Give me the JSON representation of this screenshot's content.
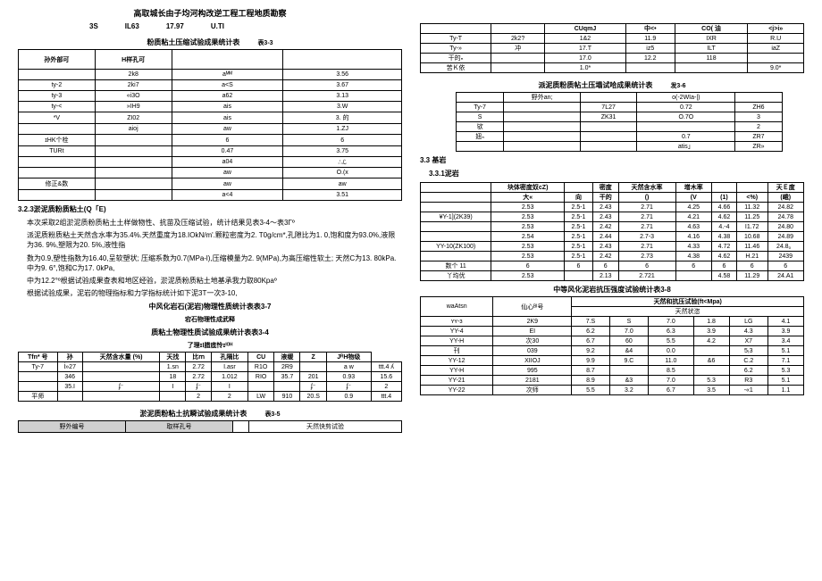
{
  "doc_title": "高取城长由子均河构改逆工程工程地质勘察",
  "top_row": {
    "a": "3S",
    "b": "IL63",
    "c": "17.97",
    "d": "U.TI"
  },
  "table33": {
    "title": "粉质粘土压缩试验成果统计表",
    "num": "表3-3",
    "cols": [
      "孙外部可",
      "H样孔可",
      "",
      ""
    ],
    "rows": [
      [
        "",
        "2k8",
        "aᴹᴹ",
        "3.56"
      ],
      [
        "ty-2",
        "2ki7",
        "a<S",
        "3.67"
      ],
      [
        "ty-3",
        "«i3O",
        "a62",
        "3.13"
      ],
      [
        "ty-<",
        "»IH9",
        "ais",
        "3.W"
      ],
      [
        "*V",
        "ZI02",
        "ais",
        "3. 的"
      ],
      [
        "",
        "aioj",
        "aw",
        "1.ZJ"
      ],
      [
        "ɪHK个栓",
        "",
        "6",
        "6"
      ],
      [
        "TURt",
        "",
        "0.47",
        "3.75"
      ],
      [
        "",
        "",
        "a04",
        "∴ℒ"
      ],
      [
        "",
        "",
        "aw",
        "O.(x"
      ],
      [
        "修正&数",
        "",
        "aw",
        "aw"
      ],
      [
        "",
        "",
        "a<4",
        "3.51"
      ]
    ]
  },
  "section323": {
    "head": "3.2.3淤泥质粉质粘土(Q「E)",
    "p1": "本次采取2组淤泥质粉质粘土土样做物性、抗苗及压缩试验，统计结果见表3-4～表3Γº",
    "p2": "派泥质粉质粘土天然含水率为35.4%.天然重度为18.IOkN/m'.颗粒密度为2. T0g/cm*,孔隙比为1. 0,饱和度为93.0%,液限为36. 9%,塑限为20. 5%,液性指",
    "p3": "数为0.9,塑性指数为16.40,呈软塑状; 压缩系数为0.7(MPa-l),压缩模量为2. 9(MPa),为高压缩性软土; 天然C为13. 80kPa.中为9. 6°,饱和C为17. 0kPa,",
    "p4": "中为12.2°º根据试验成果查表和地区经验，淤泥质粉质粘土地基承我力取80Kpaº",
    "p5": "根据试验成果，泥岩的物理指标和力学指标统计如下泥3T一次3-10,"
  },
  "table37_title": "中风化岩石(泥岩)物理性质统计表表3-7",
  "table37_sub": "宕石物理性成武释",
  "table34": {
    "title": "质粘土物理性质试验成果统计表表3-4",
    "sub": "了理ɪⅠ腊底怜ɪᴵᴼᴴ",
    "cols": [
      "Tfn* 号",
      "孙",
      "天然含水量 (%)",
      "天找",
      "比ⅿ",
      "孔隔比",
      "CU",
      "液缓",
      "Z",
      "JᴿH物级"
    ],
    "rows": [
      [
        "Ty-7",
        "İ»27",
        "",
        "1.sn",
        "2.72",
        "I.asr",
        "R1O",
        "2R9",
        "",
        "a w",
        "ttt.4 ʎ"
      ],
      [
        "",
        "346",
        "",
        "18",
        "2.72",
        "1.012",
        "RIO",
        "35.7",
        "201",
        "0.93",
        "15.6"
      ],
      [
        "",
        "35.I",
        "ʄ⁻",
        "I",
        "ʄ⁻",
        " I",
        "",
        "",
        "ʄ⁻",
        "ʄ⁻",
        " 2"
      ],
      [
        "平师",
        "",
        "",
        "",
        "2",
        " 2",
        "LW",
        "910",
        "20.S",
        "0.9",
        "ttt.4"
      ]
    ]
  },
  "table35": {
    "title": "淤泥质粉粘土抗瞬试验成果统计表",
    "num": "表3-5",
    "footer": [
      "野外编号",
      "取样孔号",
      "",
      "天然快剪试验"
    ]
  },
  "table_r1": {
    "thr": [
      "",
      "",
      "CUqmJ",
      "中<•",
      "CO( 油 ",
      "<j>i»"
    ],
    "rows": [
      [
        "Ty-T",
        "2k2?",
        "1&2",
        "11.9",
        "IXR",
        "R.U"
      ],
      [
        "Ty-»",
        "冲",
        "17.T",
        "iz5",
        "ILT",
        "iaZ"
      ],
      [
        "干的ₙ",
        " ",
        "17.0",
        "12.2",
        "118",
        " "
      ],
      [
        "苦Ｋ依",
        " ",
        "1.0*",
        " ",
        " ",
        "9.0*"
      ]
    ]
  },
  "table36": {
    "title": "派泥质粉质帖土压塌试哈成果统计表",
    "num": "发3-6",
    "rows": [
      [
        "",
        "野外an;",
        "",
        "o(-2WIa-|)",
        ""
      ],
      [
        "Ty-7",
        "",
        "7L27",
        "0.72",
        "ZH6"
      ],
      [
        "S",
        "",
        "ZK31",
        "O.7O",
        "3"
      ],
      [
        "欤",
        "",
        "",
        "",
        "2"
      ],
      [
        "妞ₙ",
        "",
        "",
        "0.7",
        "ZR7"
      ],
      [
        "",
        "",
        "",
        "atis」",
        "ZR»"
      ]
    ]
  },
  "s33": "3.3 基岩",
  "s331": "3.3.1泥岩",
  "table_big": {
    "th1": [
      "",
      "块体密度奴cZ)",
      "",
      "密度",
      "天然含水率",
      "增木率",
      "",
      "",
      "天Ｅ度"
    ],
    "th2": [
      "",
      "大«",
      "向",
      "干的",
      " ()",
      "(V",
      "(1)",
      "<%)",
      "(峨)"
    ],
    "rows": [
      [
        "",
        "2.53",
        "2.5-1",
        "2.43",
        "2.71",
        "4.25",
        "4.66",
        "11.32",
        "24.82"
      ],
      [
        "¥Y-1](2K39)",
        "2.53",
        "2.5-1",
        "2.43",
        "2.71",
        "4.21",
        "4.62",
        "11.25",
        "24.78"
      ],
      [
        "",
        "2.53",
        "2.5-1",
        "2.42",
        "2.71",
        "4.63",
        "4.-4",
        "I1.72",
        "24.80"
      ],
      [
        "",
        "2.54",
        "2.5-1",
        "2.44",
        "2.7-3",
        "4.16",
        "4.38",
        "10.68",
        "24.89"
      ],
      [
        "YY-10(ZK100)",
        "2.53",
        "2.5-1",
        "2.43",
        "2.71",
        "4.33",
        "4.72",
        "11.46",
        "24.8。"
      ],
      [
        "",
        "2.53",
        "2.5-1",
        "2.42",
        "2.73",
        "4.38",
        "4.62",
        "H.21",
        "2439"
      ],
      [
        "数个 11",
        "6",
        "6",
        "6",
        "6",
        "6",
        "6",
        "6",
        "6"
      ],
      [
        "丫均优",
        "2.53",
        "",
        "2.13",
        "2.721",
        "",
        "4.58",
        "11.29",
        "24.A1"
      ]
    ]
  },
  "table38": {
    "title": "中等风化泥岩抗压强度试验统计表3-8",
    "sub2": "天然和抗压试验(ft<Mpa)",
    "rows": [
      [
        "waAtsn",
        "仙心ᴮᴵ号",
        "天然状恣",
        "",
        "",
        "",
        "",
        ""
      ],
      [
        "ʏʏ-ɜ",
        "2K9",
        "7.S",
        "S",
        "7.0",
        "1.8",
        "LG",
        "4.1"
      ],
      [
        "YY-4",
        "EI",
        "6.2",
        "7.0",
        "6.3",
        "3.9",
        "4.3",
        "3.9"
      ],
      [
        "YY-H",
        "次30",
        "6.7",
        "60",
        "5.5",
        "4.2",
        "X7",
        "3.4"
      ],
      [
        "刊",
        "039",
        "9.2",
        "&4",
        "0.0",
        "",
        "5₍3",
        "5.1"
      ],
      [
        "YY-12",
        "XIIOJ",
        "9.9",
        "9.C",
        "11.0",
        "&6",
        "C.2",
        "7.1"
      ],
      [
        "YY-H",
        "995",
        "8.7",
        "",
        "8.5",
        "",
        "6.2",
        "5.3"
      ],
      [
        "YY-21",
        "2181",
        "8.9",
        "&3",
        "7.0",
        "5.3",
        "R3",
        "5.1"
      ],
      [
        "YY-22",
        "次师",
        "5.5",
        "3.2",
        "6.7",
        "3.5",
        "-«1",
        "1.1"
      ]
    ]
  }
}
